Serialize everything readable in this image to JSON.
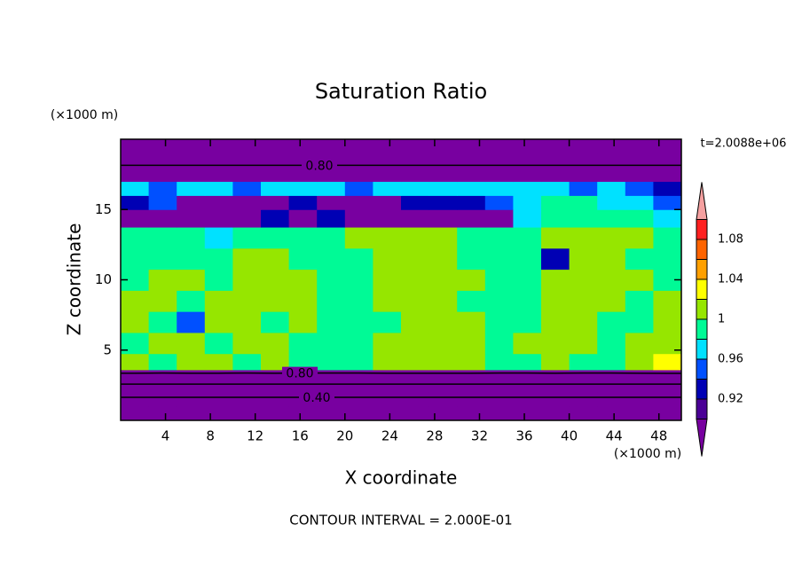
{
  "chart_data": {
    "type": "contour",
    "title": "Saturation Ratio",
    "x_label": "X coordinate",
    "y_label": "Z coordinate",
    "x_unit": "(×1000 m)",
    "y_unit": "(×1000 m)",
    "time_label": "t=2.0088e+06",
    "contour_interval": "CONTOUR INTERVAL = 2.000E-01",
    "xlim": [
      0,
      50
    ],
    "ylim": [
      0,
      20
    ],
    "xticks": [
      4,
      8,
      12,
      16,
      20,
      24,
      28,
      32,
      36,
      40,
      44,
      48
    ],
    "yticks": [
      5,
      10,
      15
    ],
    "x": [
      1.25,
      3.75,
      6.25,
      8.75,
      11.25,
      13.75,
      16.25,
      18.75,
      21.25,
      23.75,
      26.25,
      28.75,
      31.25,
      33.75,
      36.25,
      38.75,
      41.25,
      43.75,
      46.25,
      48.75
    ],
    "y": [
      0.5,
      1.5,
      2.5,
      3.2,
      4,
      5.5,
      7,
      8.5,
      10,
      11.5,
      13,
      14.5,
      15.5,
      16.5,
      17.5,
      18.5,
      19.5
    ],
    "z": [
      [
        0.3,
        0.3,
        0.3,
        0.3,
        0.3,
        0.3,
        0.3,
        0.3,
        0.3,
        0.3,
        0.3,
        0.3,
        0.3,
        0.3,
        0.3,
        0.3,
        0.3,
        0.3,
        0.3,
        0.3
      ],
      [
        0.37,
        0.37,
        0.37,
        0.37,
        0.37,
        0.37,
        0.37,
        0.37,
        0.37,
        0.37,
        0.37,
        0.37,
        0.37,
        0.37,
        0.37,
        0.37,
        0.37,
        0.37,
        0.37,
        0.37
      ],
      [
        0.58,
        0.58,
        0.58,
        0.58,
        0.58,
        0.58,
        0.58,
        0.58,
        0.58,
        0.58,
        0.58,
        0.58,
        0.58,
        0.58,
        0.58,
        0.58,
        0.58,
        0.58,
        0.58,
        0.58
      ],
      [
        0.75,
        0.75,
        0.75,
        0.75,
        0.75,
        0.75,
        0.75,
        0.75,
        0.75,
        0.75,
        0.75,
        0.75,
        0.75,
        0.75,
        0.75,
        0.75,
        0.75,
        0.75,
        0.75,
        0.75
      ],
      [
        1.01,
        0.99,
        1.01,
        1.01,
        0.99,
        1.01,
        0.99,
        0.99,
        0.99,
        1.01,
        1.01,
        1.01,
        1.01,
        0.99,
        0.99,
        1.01,
        0.99,
        0.99,
        1.01,
        1.03
      ],
      [
        0.99,
        1.01,
        1.01,
        0.99,
        1.01,
        1.01,
        0.99,
        0.99,
        0.99,
        1.01,
        1.01,
        1.01,
        1.01,
        0.99,
        1.01,
        1.01,
        1.01,
        0.99,
        1.01,
        1.01
      ],
      [
        1.01,
        0.99,
        0.95,
        1.01,
        1.01,
        0.99,
        1.01,
        0.99,
        0.99,
        0.99,
        1.01,
        1.01,
        1.01,
        0.99,
        0.99,
        1.01,
        1.01,
        0.99,
        0.99,
        1.01
      ],
      [
        1.01,
        1.01,
        0.99,
        1.01,
        1.01,
        1.01,
        1.01,
        0.99,
        0.99,
        1.01,
        1.01,
        1.01,
        0.99,
        0.99,
        0.99,
        1.01,
        1.01,
        1.01,
        0.99,
        1.01
      ],
      [
        0.99,
        1.01,
        1.01,
        0.99,
        1.01,
        1.01,
        1.01,
        0.99,
        0.99,
        1.01,
        1.01,
        1.01,
        1.01,
        0.99,
        0.99,
        1.01,
        1.01,
        1.01,
        1.01,
        0.99
      ],
      [
        0.99,
        0.99,
        0.99,
        0.99,
        1.01,
        1.01,
        0.99,
        0.99,
        0.99,
        1.01,
        1.01,
        1.01,
        0.99,
        0.99,
        0.99,
        0.93,
        1.01,
        1.01,
        0.99,
        0.99
      ],
      [
        0.99,
        0.99,
        0.99,
        0.97,
        0.99,
        0.99,
        0.99,
        0.99,
        1.01,
        1.01,
        1.01,
        1.01,
        0.99,
        0.99,
        0.99,
        1.01,
        1.01,
        1.01,
        1.01,
        0.99
      ],
      [
        0.85,
        0.85,
        0.85,
        0.85,
        0.85,
        0.93,
        0.85,
        0.93,
        0.85,
        0.85,
        0.85,
        0.85,
        0.85,
        0.85,
        0.97,
        0.99,
        0.99,
        0.99,
        0.99,
        0.97
      ],
      [
        0.93,
        0.95,
        0.85,
        0.85,
        0.85,
        0.85,
        0.93,
        0.85,
        0.85,
        0.85,
        0.93,
        0.93,
        0.93,
        0.95,
        0.97,
        0.99,
        0.99,
        0.97,
        0.97,
        0.95
      ],
      [
        0.97,
        0.95,
        0.97,
        0.97,
        0.95,
        0.97,
        0.97,
        0.97,
        0.95,
        0.97,
        0.97,
        0.97,
        0.97,
        0.97,
        0.97,
        0.97,
        0.95,
        0.97,
        0.95,
        0.93
      ],
      [
        0.89,
        0.89,
        0.89,
        0.89,
        0.89,
        0.89,
        0.89,
        0.89,
        0.89,
        0.89,
        0.89,
        0.89,
        0.89,
        0.89,
        0.89,
        0.89,
        0.89,
        0.89,
        0.89,
        0.89
      ],
      [
        0.75,
        0.75,
        0.75,
        0.75,
        0.75,
        0.75,
        0.75,
        0.75,
        0.75,
        0.75,
        0.75,
        0.75,
        0.75,
        0.75,
        0.75,
        0.75,
        0.75,
        0.75,
        0.75,
        0.75
      ],
      [
        0.72,
        0.72,
        0.72,
        0.72,
        0.72,
        0.72,
        0.72,
        0.72,
        0.72,
        0.72,
        0.72,
        0.72,
        0.72,
        0.72,
        0.72,
        0.72,
        0.72,
        0.72,
        0.72,
        0.72
      ]
    ],
    "levels": [
      0.9,
      0.92,
      0.94,
      0.96,
      0.98,
      1,
      1.02,
      1.04,
      1.06,
      1.08,
      1.1
    ],
    "colors": [
      "#7800a0",
      "#4b0096",
      "#0000b4",
      "#0050ff",
      "#00e1ff",
      "#00fa96",
      "#96e600",
      "#ffff00",
      "#ffa000",
      "#ff6400",
      "#ff2020",
      "#f5a0a0"
    ],
    "colorbar_ticks": [
      0.92,
      0.96,
      1,
      1.04,
      1.08
    ],
    "contour_levels": [
      0.4,
      0.6,
      0.8
    ],
    "contour_labels": [
      {
        "value": 0.8,
        "label": "0.80"
      },
      {
        "value": 0.8,
        "label": "0.80"
      },
      {
        "value": 0.4,
        "label": "0.40"
      }
    ]
  }
}
